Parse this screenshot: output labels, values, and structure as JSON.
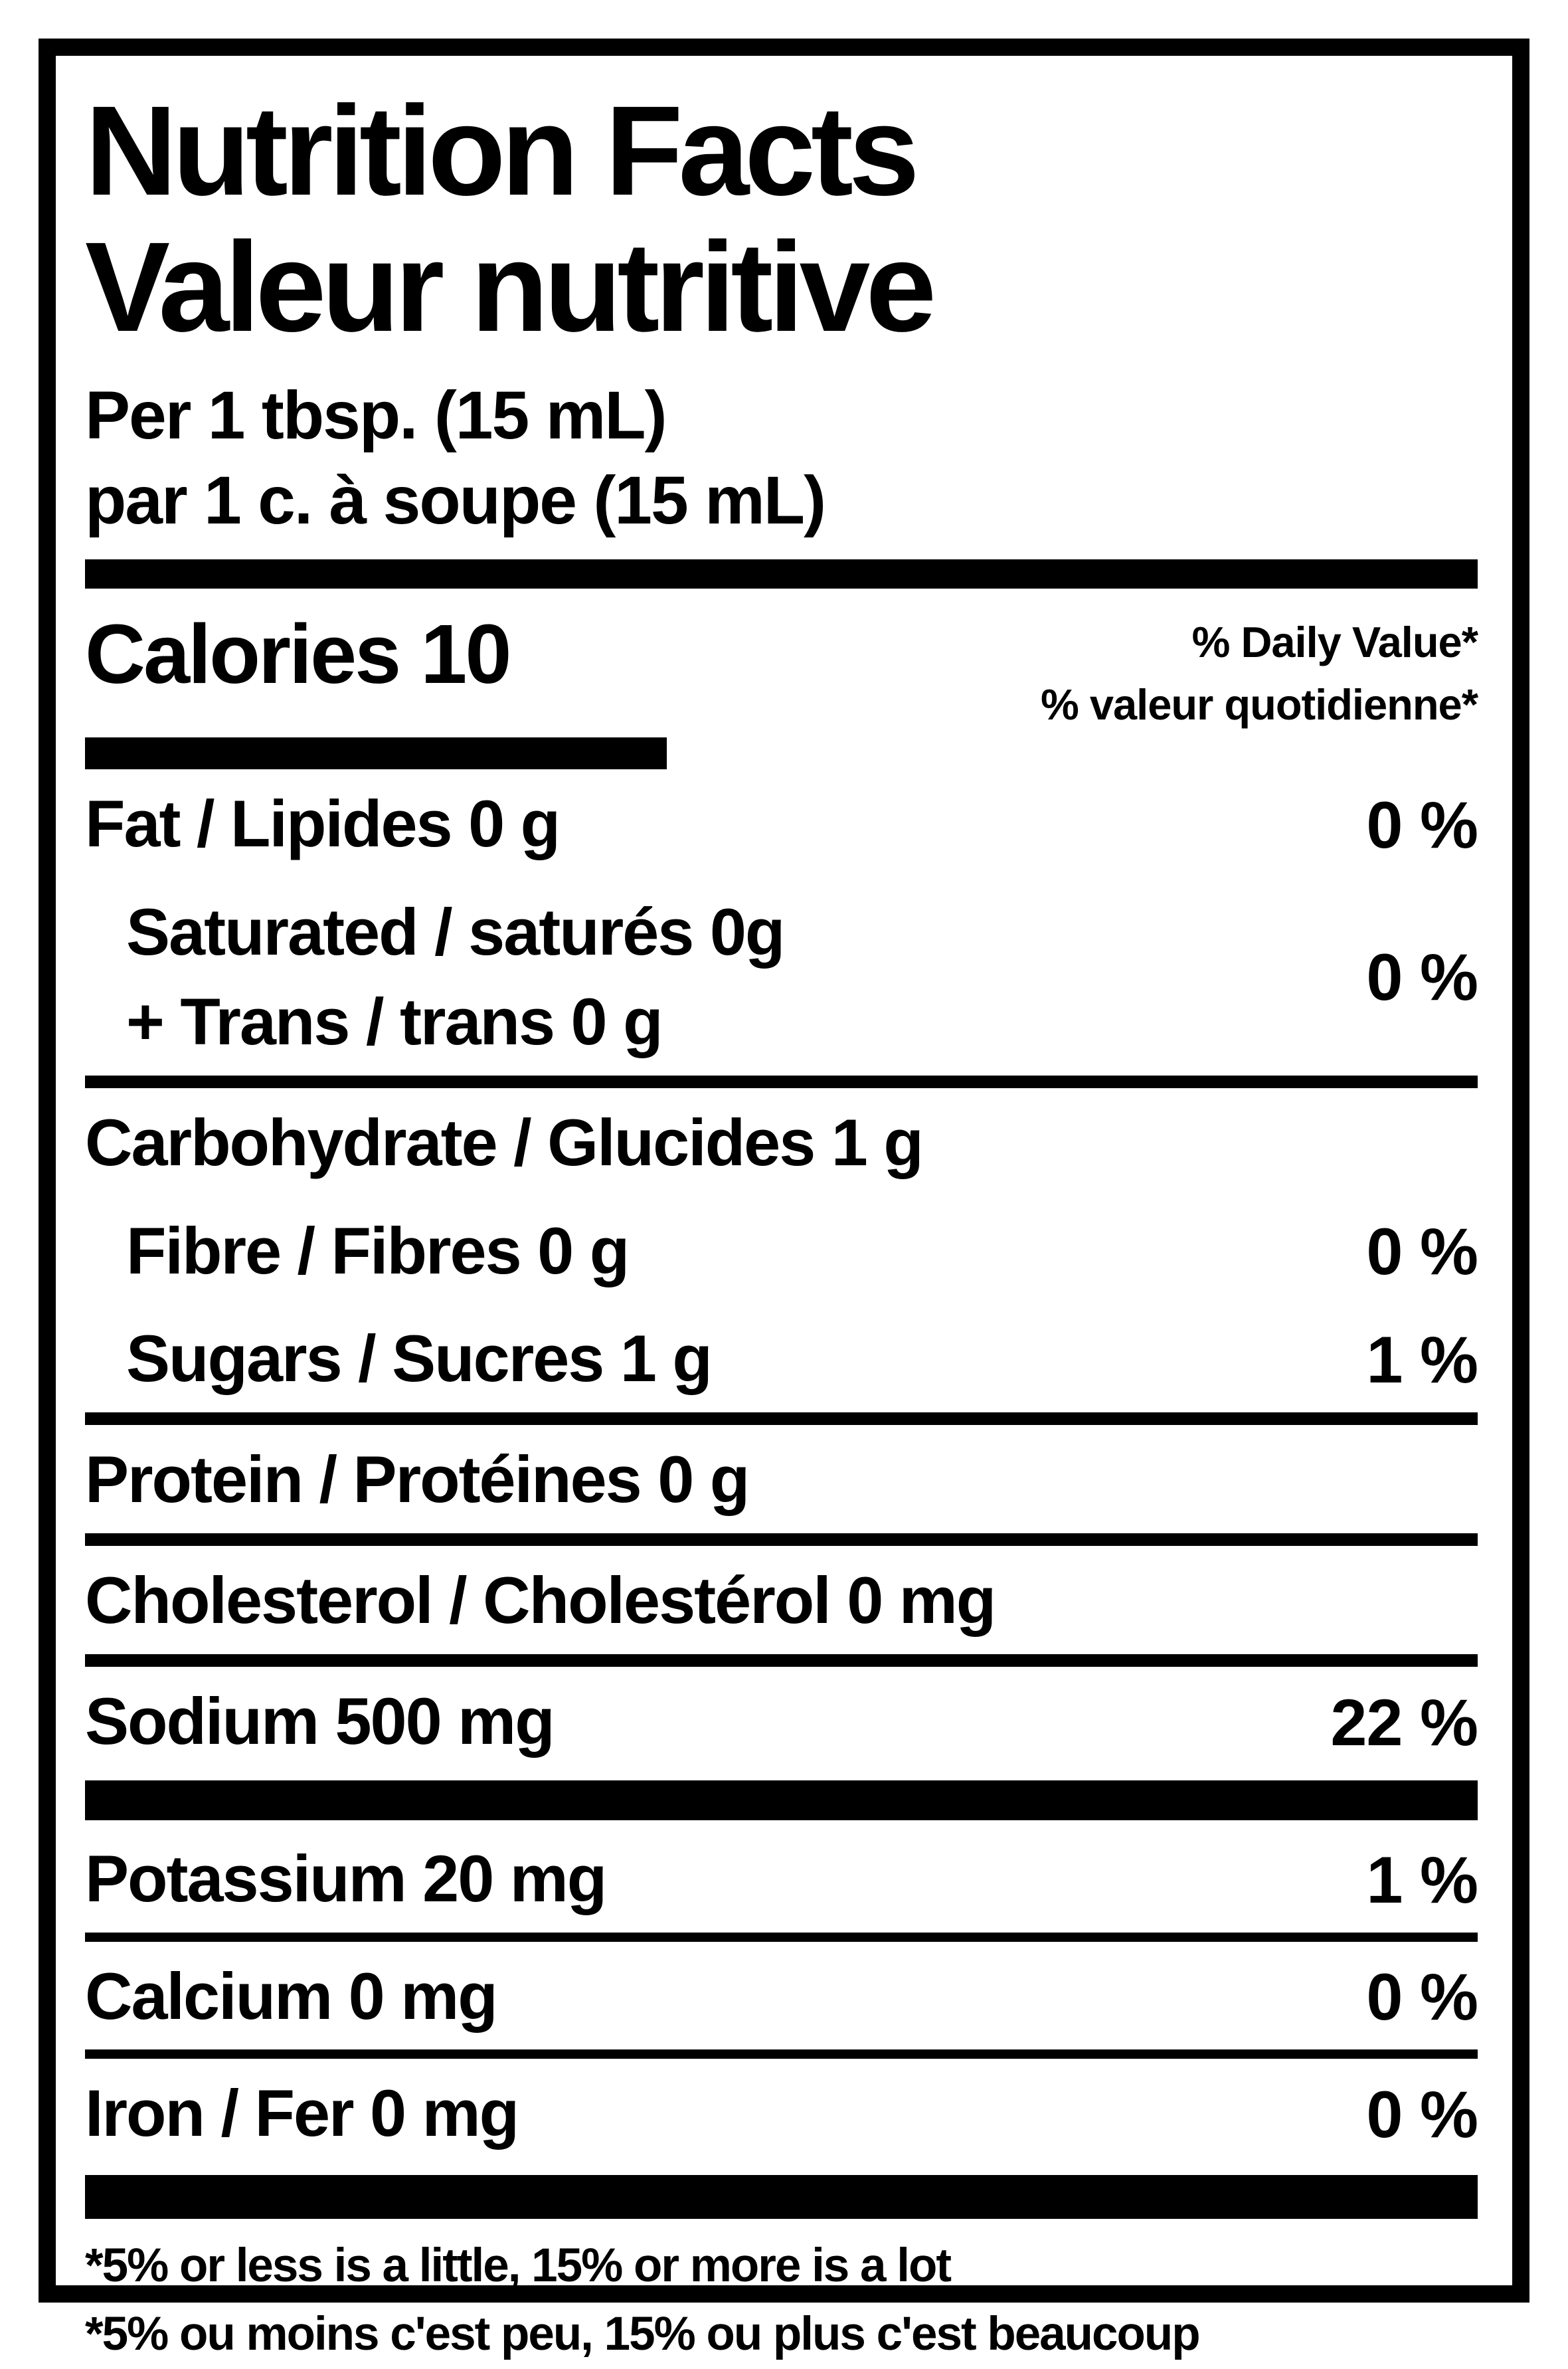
{
  "label": {
    "title_en": "Nutrition Facts",
    "title_fr": "Valeur nutritive",
    "serving_en": "Per 1 tbsp. (15 mL)",
    "serving_fr": "par 1 c. à soupe (15 mL)",
    "calories": "Calories 10",
    "daily_value_header_en": "% Daily Value*",
    "daily_value_header_fr": "% valeur quotidienne*",
    "rows": [
      {
        "name": "Fat / Lipides 0 g",
        "value": "0 %"
      },
      {
        "line1": "Saturated / saturés 0g",
        "line2": "+ Trans / trans 0 g",
        "value": "0 %"
      },
      {
        "name": "Carbohydrate / Glucides 1 g",
        "value": ""
      },
      {
        "name": "Fibre / Fibres 0 g",
        "value": "0 %"
      },
      {
        "name": "Sugars / Sucres 1 g",
        "value": "1 %"
      },
      {
        "name": "Protein / Protéines 0 g",
        "value": ""
      },
      {
        "name": "Cholesterol / Cholestérol 0 mg",
        "value": ""
      },
      {
        "name": "Sodium 500 mg",
        "value": "22 %"
      },
      {
        "name": "Potassium 20 mg",
        "value": "1 %"
      },
      {
        "name": "Calcium 0 mg",
        "value": "0 %"
      },
      {
        "name": "Iron / Fer 0 mg",
        "value": "0 %"
      }
    ],
    "footnote_en": "*5% or less is a little, 15% or more is a lot",
    "footnote_fr": "*5% ou moins c'est peu, 15% ou plus c'est beaucoup"
  }
}
